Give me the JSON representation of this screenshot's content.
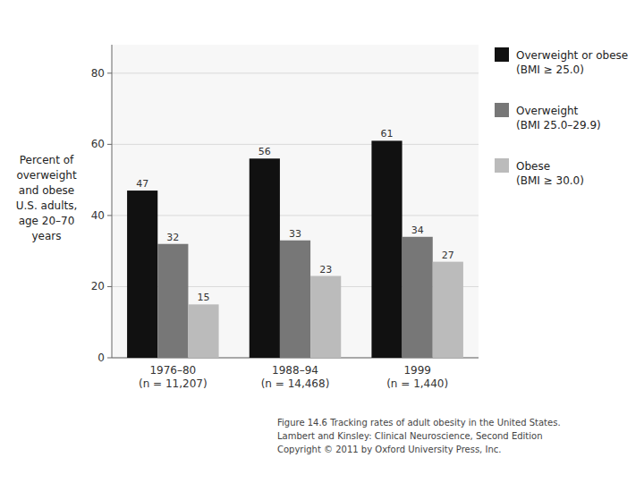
{
  "chart_data": {
    "type": "bar",
    "y_label": "Percent of\noverweight\nand obese\nU.S. adults,\nage 20–70\nyears",
    "caption": "Figure 14.6  Tracking rates of adult obesity in the United States.\nLambert and Kinsley: Clinical Neuroscience, Second Edition\nCopyright © 2011 by Oxford University Press, Inc.",
    "categories": [
      "1976–80\n(n = 11,207)",
      "1988–94\n(n = 14,468)",
      "1999\n(n = 1,440)"
    ],
    "series": [
      {
        "name": "Overweight or obese\n(BMI ≥ 25.0)",
        "color": "#111111",
        "values": [
          47,
          56,
          61
        ]
      },
      {
        "name": "Overweight\n(BMI 25.0–29.9)",
        "color": "#777777",
        "values": [
          32,
          33,
          34
        ]
      },
      {
        "name": "Obese\n(BMI ≥ 30.0)",
        "color": "#bbbbbb",
        "values": [
          15,
          23,
          27
        ]
      }
    ],
    "ylim": [
      0,
      88
    ],
    "yticks": [
      0,
      20,
      40,
      60,
      80
    ],
    "grid": true,
    "data_labels": true,
    "legend": "right"
  }
}
